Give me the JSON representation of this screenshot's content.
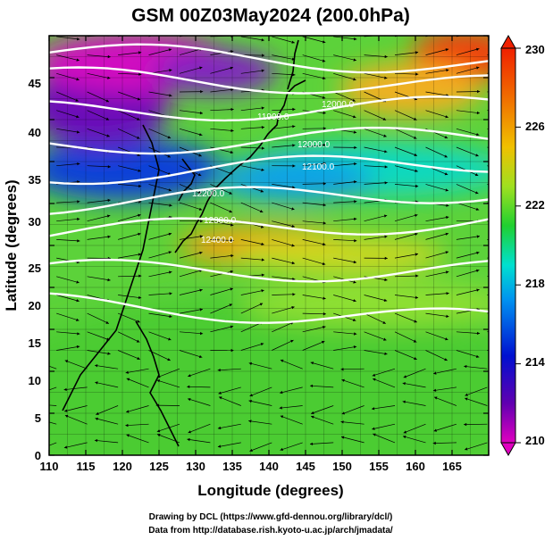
{
  "chart_data": {
    "type": "heatmap",
    "title": "GSM 00Z03May2024 (200.0hPa)",
    "xlabel": "Longitude (degrees)",
    "ylabel": "Latitude  (degrees)",
    "xlim": [
      110,
      170
    ],
    "ylim": [
      0,
      50
    ],
    "x_ticks": [
      "110",
      "115",
      "120",
      "125",
      "130",
      "135",
      "140",
      "145",
      "150",
      "155",
      "160",
      "165"
    ],
    "y_ticks": [
      "0",
      "5",
      "10",
      "15",
      "20",
      "25",
      "30",
      "35",
      "40",
      "45"
    ],
    "colorbar": {
      "range": [
        210,
        230
      ],
      "ticks": [
        "210",
        "214",
        "218",
        "222",
        "226",
        "230"
      ],
      "colors": [
        "#e000c0",
        "#6000b0",
        "#0010d0",
        "#0090f0",
        "#00e0d0",
        "#20d030",
        "#a0e020",
        "#f0c000",
        "#f07000",
        "#f02000"
      ],
      "extend": "both"
    },
    "contours": {
      "labels": [
        "11900.0",
        "12000.0",
        "12100.0",
        "12200.0",
        "12300.0",
        "12400.0"
      ],
      "lines": [
        {
          "lat_at_110": 48.0,
          "lat_at_170": 46.5
        },
        {
          "lat_at_110": 45.0,
          "lat_at_170": 44.0
        },
        {
          "lat_at_110": 41.0,
          "lat_at_170": 41.5
        },
        {
          "lat_at_110": 37.0,
          "lat_at_170": 38.0
        },
        {
          "lat_at_110": 33.5,
          "lat_at_170": 35.0
        },
        {
          "lat_at_110": 30.0,
          "lat_at_170": 31.5
        },
        {
          "lat_at_110": 26.5,
          "lat_at_170": 28.0
        },
        {
          "lat_at_110": 22.0,
          "lat_at_170": 22.0
        },
        {
          "lat_at_110": 18.0,
          "lat_at_170": 16.0
        }
      ]
    },
    "field_summary": {
      "magenta_purple_minimum_lat": [
        35,
        50
      ],
      "orange_maximum_lat": [
        24,
        30
      ],
      "red_maximum_lat": [
        42,
        50
      ],
      "green_tropics_lat": [
        0,
        22
      ]
    },
    "legend": "colorbar-right",
    "grid": true
  },
  "footer": {
    "credit_dcl": "Drawing by DCL (https://www.gfd-dennou.org/library/dcl/)",
    "credit_data": "Data from http://database.rish.kyoto-u.ac.jp/arch/jmadata/"
  }
}
